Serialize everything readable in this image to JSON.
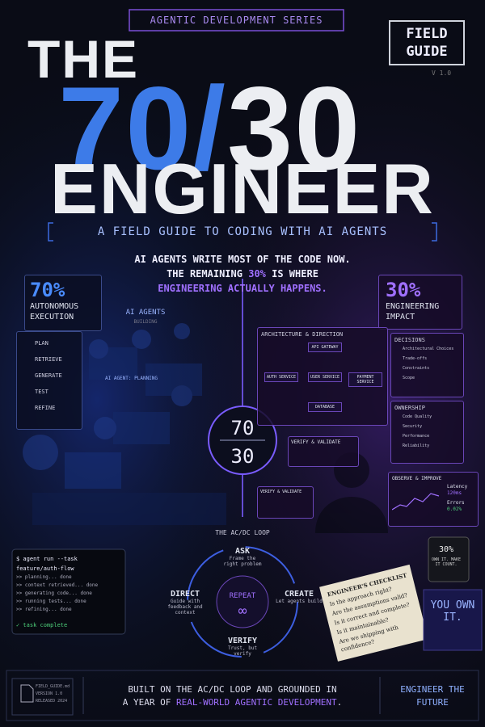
{
  "header": {
    "series": "AGENTIC DEVELOPMENT SERIES",
    "badge": "FIELD GUIDE",
    "version": "V 1.0"
  },
  "title": {
    "line1": "THE",
    "part70": "70/",
    "part30": "30",
    "line3": "ENGINEER"
  },
  "subtitle": "A FIELD GUIDE TO CODING WITH AI AGENTS",
  "intro": {
    "line1": "AI AGENTS WRITE MOST OF THE CODE NOW.",
    "line2_start": "THE REMAINING ",
    "line2_highlight": "30%",
    "line2_end": " IS WHERE",
    "line3": "ENGINEERING ACTUALLY HAPPENS."
  },
  "left": {
    "percent": "70%",
    "label": "AUTONOMOUS EXECUTION",
    "agents_title": "AI AGENTS",
    "agents_sub": "BUILDING",
    "agent_tag": "AI AGENT: PLANNING",
    "steps": [
      "PLAN",
      "RETRIEVE",
      "GENERATE",
      "TEST",
      "REFINE"
    ]
  },
  "center": {
    "top": "70",
    "bottom": "30"
  },
  "right": {
    "percent": "30%",
    "label": "ENGINEERING IMPACT",
    "architecture": {
      "title": "ARCHITECTURE & DIRECTION",
      "nodes": [
        "API GATEWAY",
        "AUTH SERVICE",
        "USER SERVICE",
        "PAYMENT SERVICE",
        "DATABASE"
      ]
    },
    "decisions": {
      "title": "DECISIONS",
      "items": [
        "Architectural Choices",
        "Trade-offs",
        "Constraints",
        "Scope"
      ]
    },
    "ownership": {
      "title": "OWNERSHIP",
      "items": [
        "Code Quality",
        "Security",
        "Performance",
        "Reliability"
      ]
    },
    "verify": [
      "VERIFY & VALIDATE",
      "VERIFY & VALIDATE"
    ],
    "observe": {
      "title": "OBSERVE & IMPROVE",
      "latency_label": "Latency",
      "latency": "120ms",
      "errors_label": "Errors",
      "errors": "0.02%"
    }
  },
  "terminal": {
    "command": "$ agent run --task feature/auth-flow",
    "lines": [
      ">> planning... done",
      ">> context retrieved... done",
      ">> generating code... done",
      ">> running tests... done",
      ">> refining... done"
    ],
    "done": "✓ task complete"
  },
  "loop": {
    "title": "THE AC/DC LOOP",
    "ask": "ASK",
    "ask_text": "Frame the right problem",
    "create": "CREATE",
    "create_text": "Let agents build",
    "verify": "VERIFY",
    "verify_text": "Trust, but verify",
    "direct": "DIRECT",
    "direct_text": "Guide with feedback and context",
    "repeat": "REPEAT",
    "infinity": "∞"
  },
  "checklist": {
    "title": "ENGINEER'S CHECKLIST",
    "items": [
      "Is the approach right?",
      "Are the assumptions valid?",
      "Is it correct and complete?",
      "Is it maintainable?",
      "Are we shipping with confidence?"
    ]
  },
  "mug": {
    "percent": "30%",
    "text": "OWN IT. MAKE IT COUNT."
  },
  "book": "YOU OWN IT.",
  "footer": {
    "file": "FIELD_GUIDE.md",
    "version": "VERSION 1.0",
    "released": "RELEASED 2024",
    "line1": "BUILT ON THE AC/DC LOOP AND GROUNDED IN",
    "line2_start": "A YEAR OF ",
    "line2_highlight": "REAL-WORLD AGENTIC DEVELOPMENT",
    "line2_end": ".",
    "right": "ENGINEER THE FUTURE"
  }
}
